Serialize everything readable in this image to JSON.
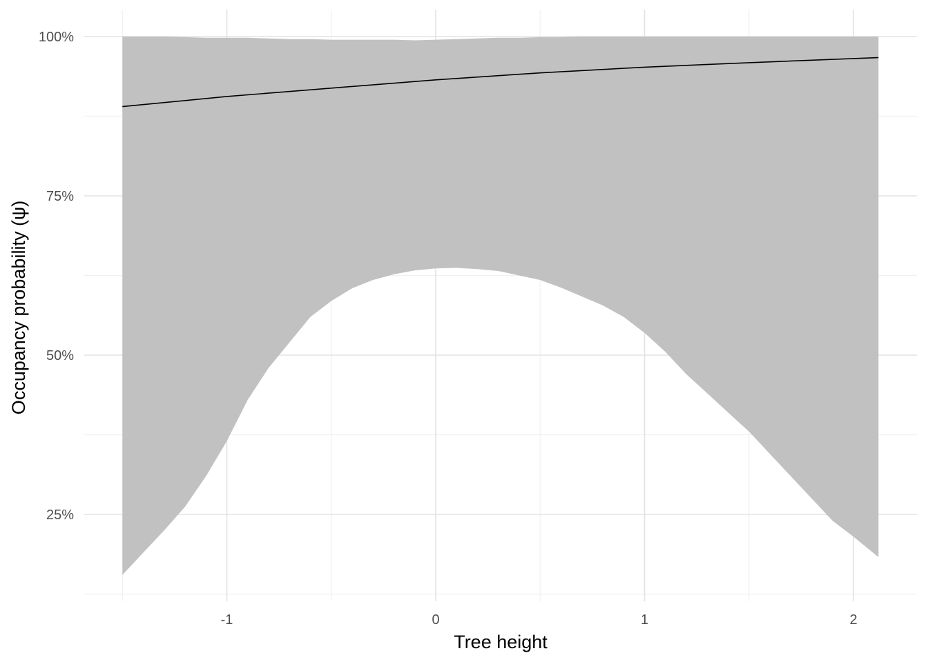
{
  "chart_data": {
    "type": "area",
    "title": "",
    "xlabel": "Tree height",
    "ylabel": "Occupancy probability (ψ)",
    "xlim": [
      -1.68,
      2.3
    ],
    "ylim": [
      0.13,
      1.0
    ],
    "x_ticks": [
      -1,
      0,
      1,
      2
    ],
    "x_tick_labels": [
      "-1",
      "0",
      "1",
      "2"
    ],
    "y_ticks": [
      0.25,
      0.5,
      0.75,
      1.0
    ],
    "y_tick_labels": [
      "25%",
      "50%",
      "75%",
      "100%"
    ],
    "grid": true,
    "legend": "none",
    "colors": {
      "ribbon": "#bebebe",
      "line": "#000000",
      "grid_major": "#e3e3e3",
      "grid_minor": "#f0f0f0"
    },
    "series": [
      {
        "kind": "line",
        "x": [
          -1.5,
          -1.0,
          -0.5,
          0.0,
          0.5,
          1.0,
          1.5,
          2.12
        ],
        "y": [
          0.89,
          0.906,
          0.919,
          0.932,
          0.943,
          0.952,
          0.959,
          0.967
        ]
      },
      {
        "kind": "ribbon",
        "x": [
          -1.5,
          -1.4,
          -1.3,
          -1.2,
          -1.1,
          -1.0,
          -0.9,
          -0.8,
          -0.7,
          -0.6,
          -0.5,
          -0.4,
          -0.3,
          -0.2,
          -0.1,
          0.0,
          0.1,
          0.2,
          0.3,
          0.4,
          0.5,
          0.6,
          0.7,
          0.8,
          0.9,
          1.0,
          1.1,
          1.2,
          1.3,
          1.4,
          1.5,
          1.6,
          1.7,
          1.8,
          1.9,
          2.0,
          2.12
        ],
        "lower": [
          0.155,
          0.19,
          0.225,
          0.262,
          0.31,
          0.365,
          0.43,
          0.48,
          0.52,
          0.56,
          0.585,
          0.605,
          0.618,
          0.627,
          0.633,
          0.636,
          0.637,
          0.635,
          0.632,
          0.625,
          0.618,
          0.606,
          0.592,
          0.578,
          0.56,
          0.535,
          0.505,
          0.47,
          0.44,
          0.41,
          0.38,
          0.345,
          0.31,
          0.275,
          0.24,
          0.215,
          0.183
        ],
        "upper": [
          1.0,
          1.0,
          1.0,
          0.999,
          0.998,
          0.998,
          0.998,
          0.997,
          0.996,
          0.996,
          0.995,
          0.995,
          0.995,
          0.995,
          0.994,
          0.995,
          0.996,
          0.997,
          0.998,
          0.998,
          0.999,
          0.999,
          1.0,
          1.0,
          1.0,
          1.0,
          1.0,
          1.0,
          1.0,
          1.0,
          1.0,
          1.0,
          1.0,
          1.0,
          1.0,
          1.0,
          1.0
        ]
      }
    ]
  }
}
